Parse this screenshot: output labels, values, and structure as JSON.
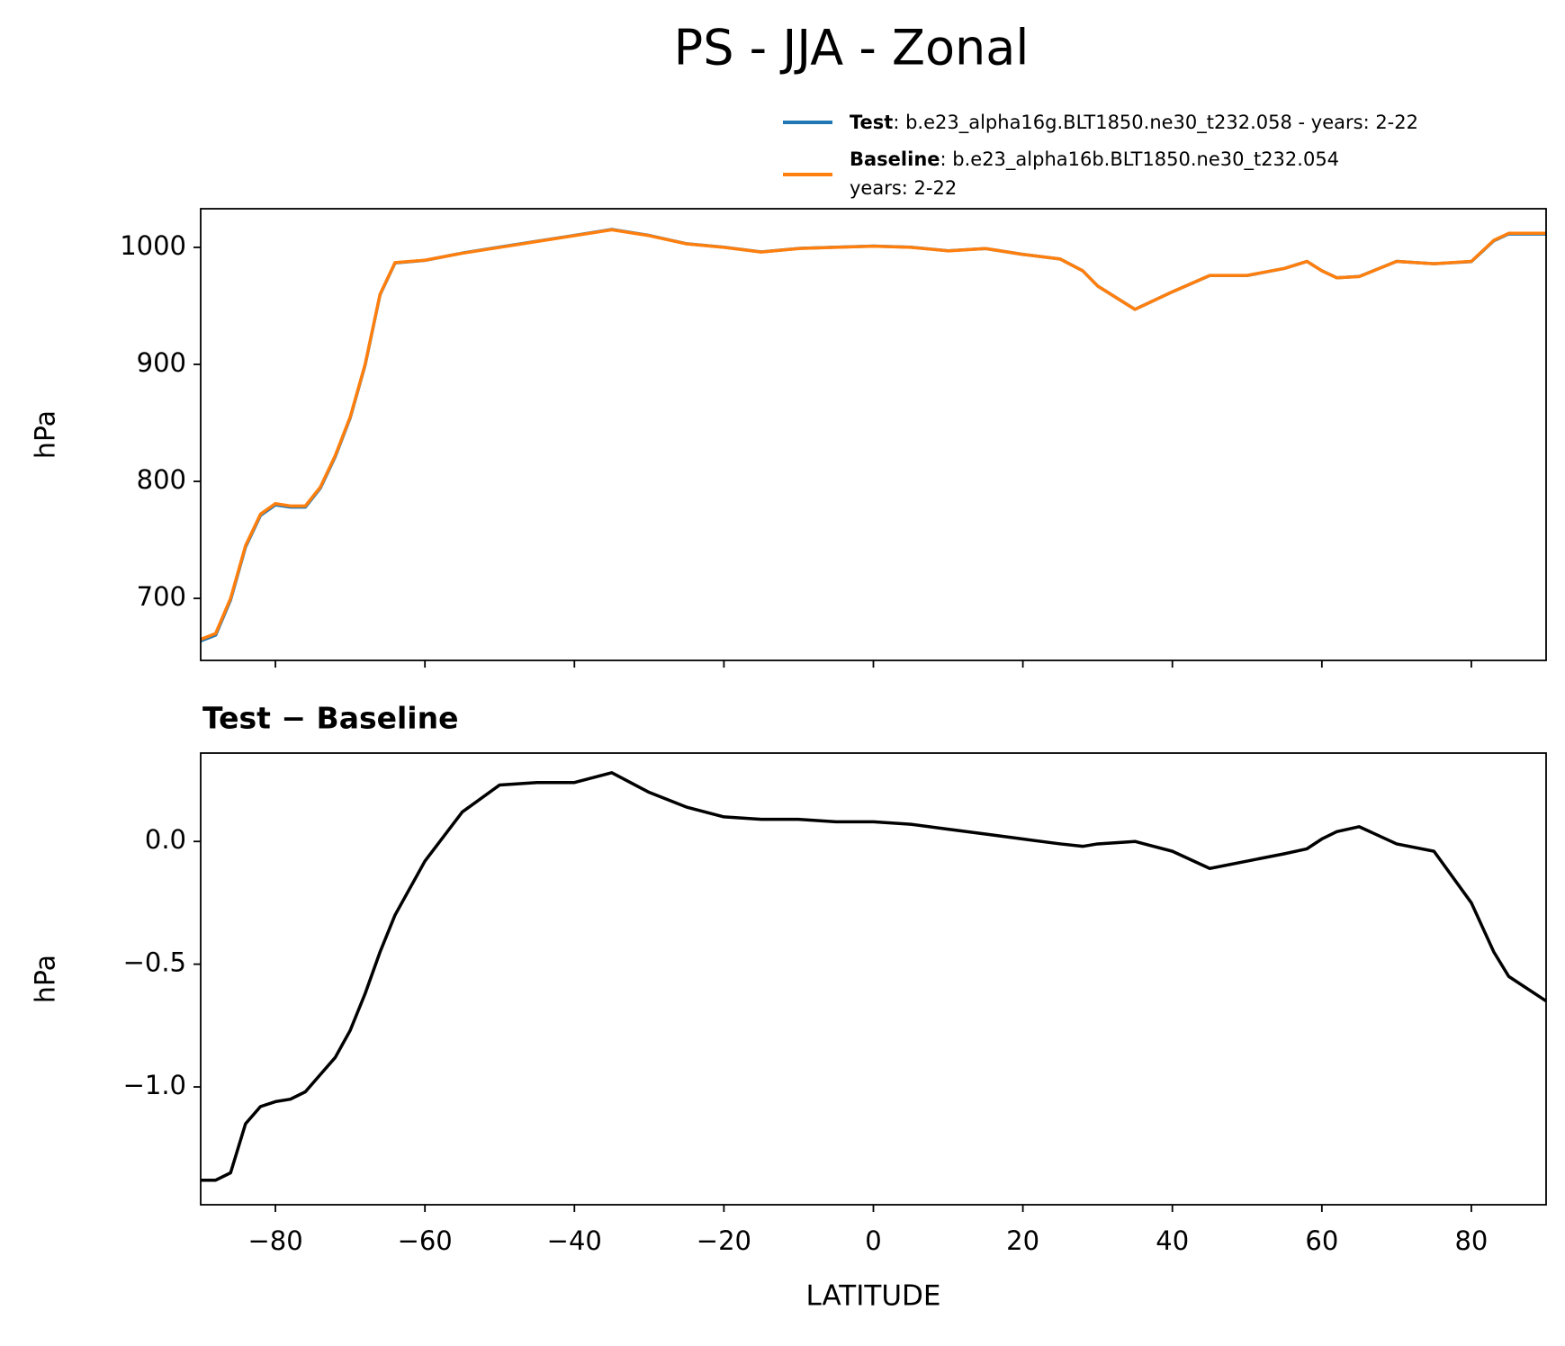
{
  "title": "PS - JJA - Zonal",
  "chart_data": [
    {
      "type": "line",
      "x": [
        -90,
        -88,
        -86,
        -84,
        -82,
        -80,
        -78,
        -76,
        -74,
        -72,
        -70,
        -68,
        -66,
        -64,
        -60,
        -55,
        -50,
        -45,
        -40,
        -35,
        -30,
        -25,
        -20,
        -15,
        -10,
        -5,
        0,
        5,
        10,
        15,
        20,
        25,
        28,
        30,
        35,
        40,
        45,
        50,
        55,
        58,
        60,
        62,
        65,
        70,
        75,
        80,
        83,
        85,
        90
      ],
      "series": [
        {
          "name": "Test",
          "description": [
            ": b.e23_alpha16g.BLT1850.ne30_t232.058 - years: 2-22"
          ],
          "color": "#1f77b4",
          "values": [
            663.6,
            668.6,
            698.7,
            743.9,
            770.9,
            779.9,
            778.0,
            778.0,
            794.1,
            821.1,
            854.2,
            899.4,
            959.6,
            986.7,
            988.9,
            995.1,
            1000.2,
            1005.2,
            1010.2,
            1015.3,
            1010.2,
            1003.1,
            1000.1,
            996.1,
            999.1,
            1000.1,
            1001.1,
            1000.1,
            997.1,
            999.0,
            994.0,
            990.0,
            980.0,
            967.0,
            947.0,
            962.0,
            975.9,
            975.9,
            982.0,
            988.0,
            980.0,
            974.0,
            975.1,
            988.0,
            986.0,
            987.8,
            1005.6,
            1011.5,
            1011.4
          ]
        },
        {
          "name": "Baseline",
          "description": [
            ": b.e23_alpha16b.BLT1850.ne30_t232.054",
            "years: 2-22"
          ],
          "color": "#ff7f0e",
          "values": [
            665,
            670,
            700,
            745,
            772,
            781,
            779,
            779,
            795,
            822,
            855,
            900,
            960,
            987,
            989,
            995,
            1000,
            1005,
            1010,
            1015,
            1010,
            1003,
            1000,
            996,
            999,
            1000,
            1001,
            1000,
            997,
            999,
            994,
            990,
            980,
            967,
            947,
            962,
            976,
            976,
            982,
            988,
            980,
            974,
            975,
            988,
            986,
            988,
            1006,
            1012,
            1012
          ]
        }
      ],
      "y_label": "hPa",
      "xlim": [
        -90,
        90
      ],
      "xticks": [
        -80,
        -60,
        -40,
        -20,
        0,
        20,
        40,
        60,
        80
      ],
      "show_xticklabels": false,
      "ylim": [
        647,
        1033
      ],
      "yticks": [
        700,
        800,
        900,
        1000
      ]
    },
    {
      "type": "line",
      "title": "Test − Baseline",
      "x": [
        -90,
        -88,
        -86,
        -84,
        -82,
        -80,
        -78,
        -76,
        -74,
        -72,
        -70,
        -68,
        -66,
        -64,
        -60,
        -55,
        -50,
        -45,
        -40,
        -35,
        -30,
        -25,
        -20,
        -15,
        -10,
        -5,
        0,
        5,
        10,
        15,
        20,
        25,
        28,
        30,
        35,
        40,
        45,
        50,
        55,
        58,
        60,
        62,
        65,
        70,
        75,
        80,
        83,
        85,
        90
      ],
      "color": "#000000",
      "values": [
        -1.38,
        -1.38,
        -1.35,
        -1.15,
        -1.08,
        -1.06,
        -1.05,
        -1.02,
        -0.95,
        -0.88,
        -0.77,
        -0.62,
        -0.45,
        -0.3,
        -0.08,
        0.12,
        0.23,
        0.24,
        0.24,
        0.28,
        0.2,
        0.14,
        0.1,
        0.09,
        0.09,
        0.08,
        0.08,
        0.07,
        0.05,
        0.03,
        0.01,
        -0.01,
        -0.02,
        -0.01,
        0.0,
        -0.04,
        -0.11,
        -0.08,
        -0.05,
        -0.03,
        0.01,
        0.04,
        0.06,
        -0.01,
        -0.04,
        -0.25,
        -0.45,
        -0.55,
        -0.65
      ],
      "x_label": "LATITUDE",
      "y_label": "hPa",
      "xlim": [
        -90,
        90
      ],
      "xticks": [
        {
          "value": -80,
          "label": "−80"
        },
        {
          "value": -60,
          "label": "−60"
        },
        {
          "value": -40,
          "label": "−40"
        },
        {
          "value": -20,
          "label": "−20"
        },
        0,
        20,
        40,
        60,
        80
      ],
      "show_xticklabels": true,
      "ylim": [
        -1.48,
        0.36
      ],
      "yticks": [
        {
          "value": -1.0,
          "label": "−1.0"
        },
        {
          "value": -0.5,
          "label": "−0.5"
        },
        {
          "value": 0.0,
          "label": "0.0"
        }
      ]
    }
  ]
}
